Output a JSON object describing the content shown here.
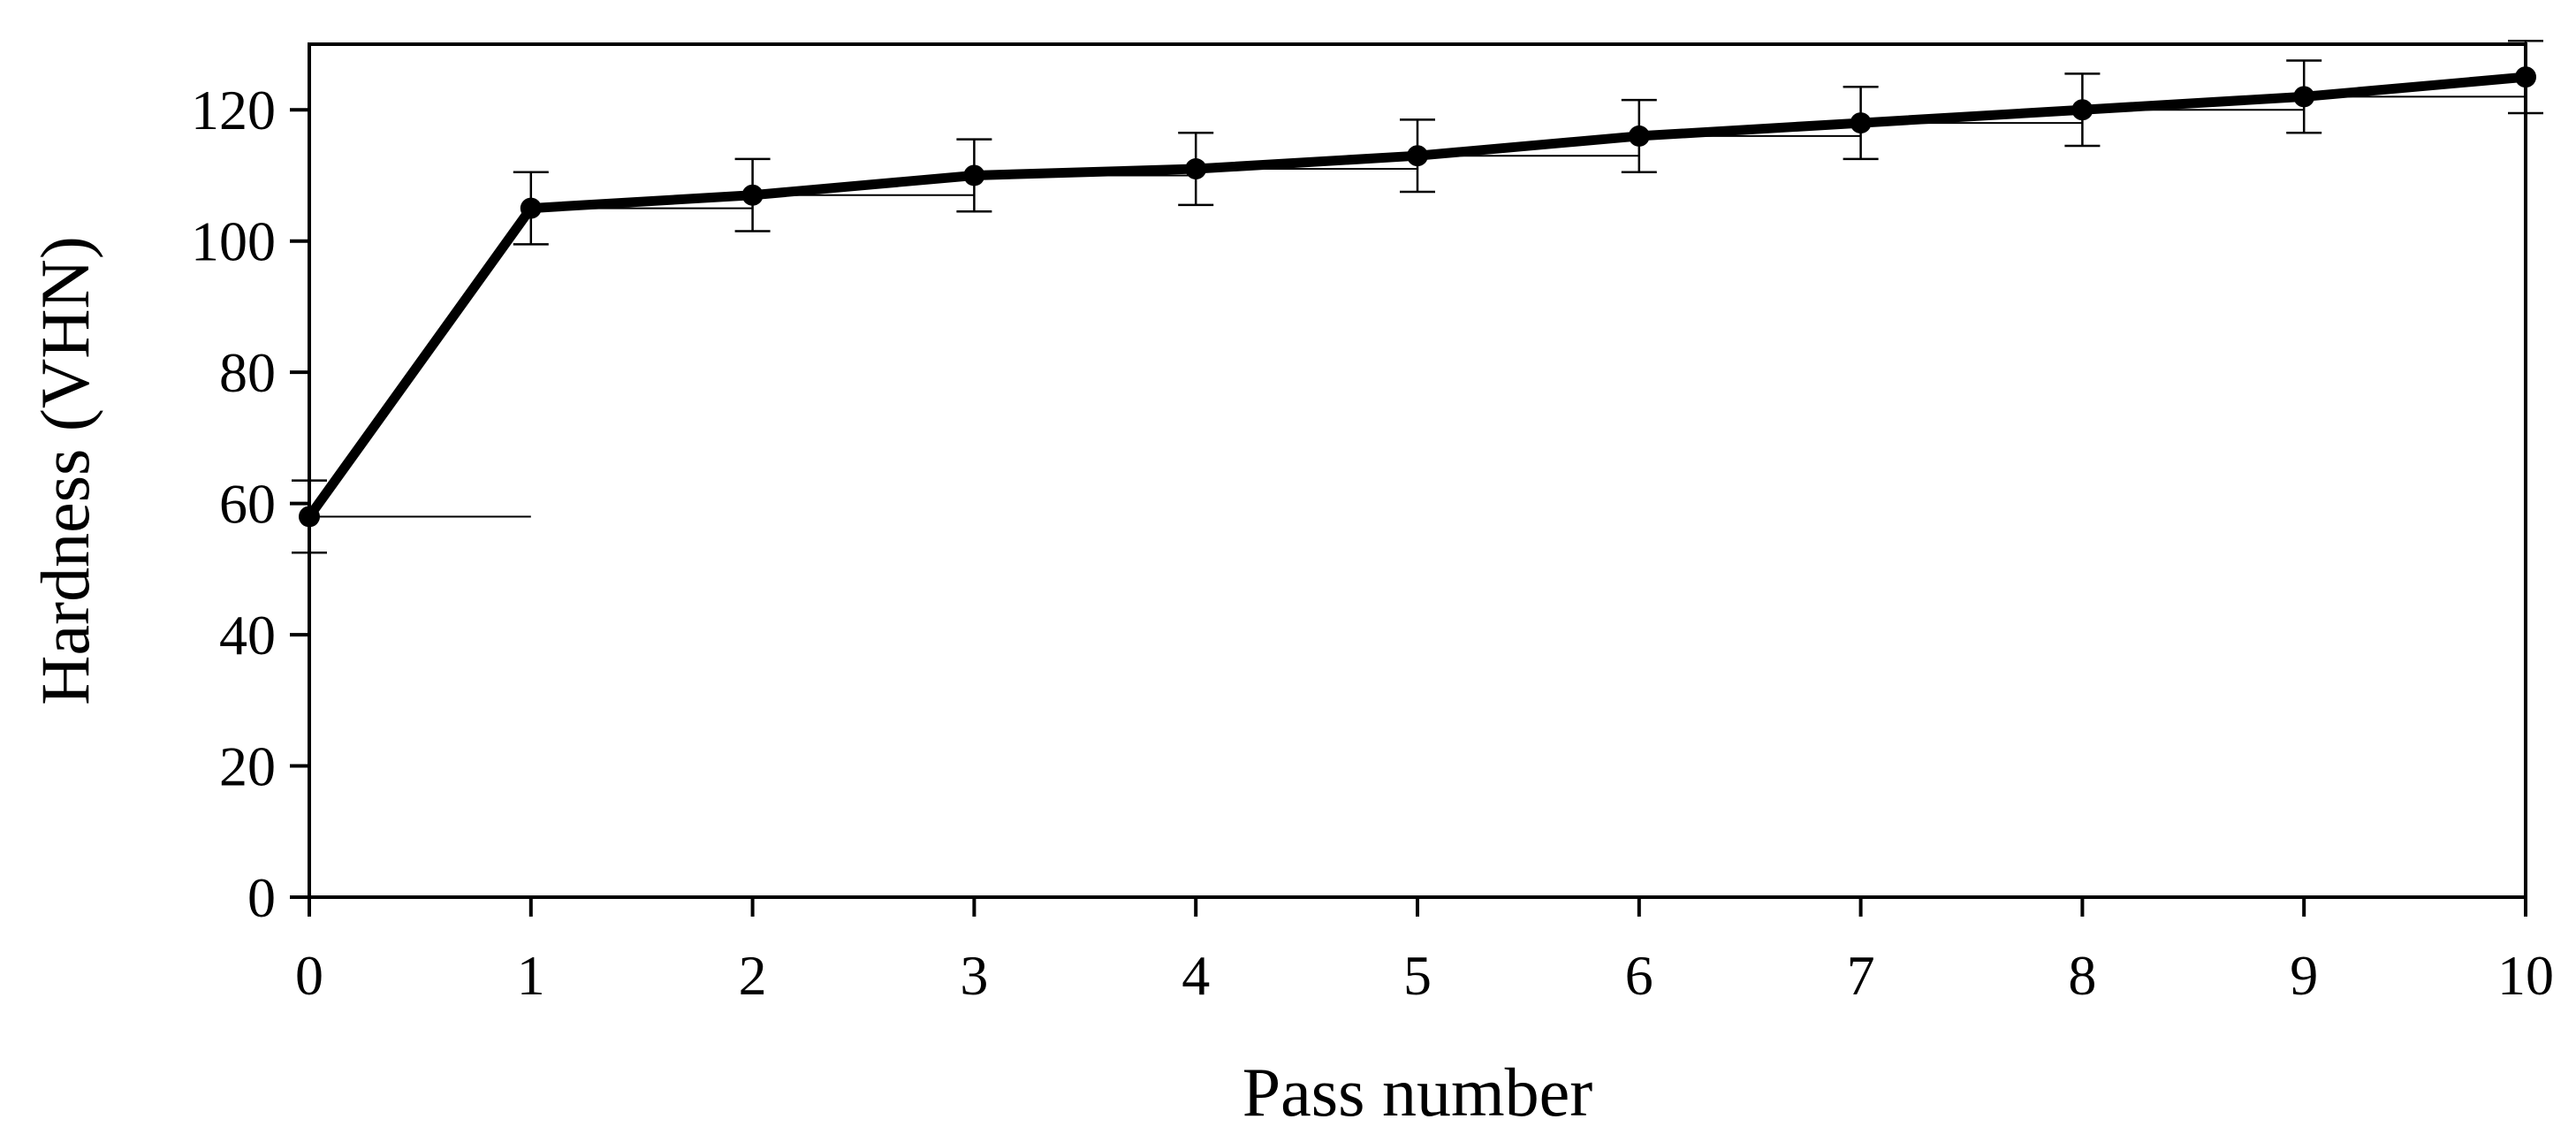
{
  "chart_data": {
    "type": "line",
    "xlabel": "Pass number",
    "ylabel": "Hardness (VHN)",
    "xlim": [
      0,
      10
    ],
    "ylim": [
      0,
      130
    ],
    "xticks": [
      0,
      1,
      2,
      3,
      4,
      5,
      6,
      7,
      8,
      9,
      10
    ],
    "yticks": [
      0,
      20,
      40,
      60,
      80,
      100,
      120
    ],
    "grid": false,
    "legend": "none",
    "series": [
      {
        "x": [
          0,
          1,
          2,
          3,
          4,
          5,
          6,
          7,
          8,
          9,
          10
        ],
        "y": [
          58,
          105,
          107,
          110,
          111,
          113,
          116,
          118,
          120,
          122,
          125
        ],
        "error": [
          5.5,
          5.5,
          5.5,
          5.5,
          5.5,
          5.5,
          5.5,
          5.5,
          5.5,
          5.5,
          5.5
        ],
        "color": "#000000"
      }
    ]
  }
}
